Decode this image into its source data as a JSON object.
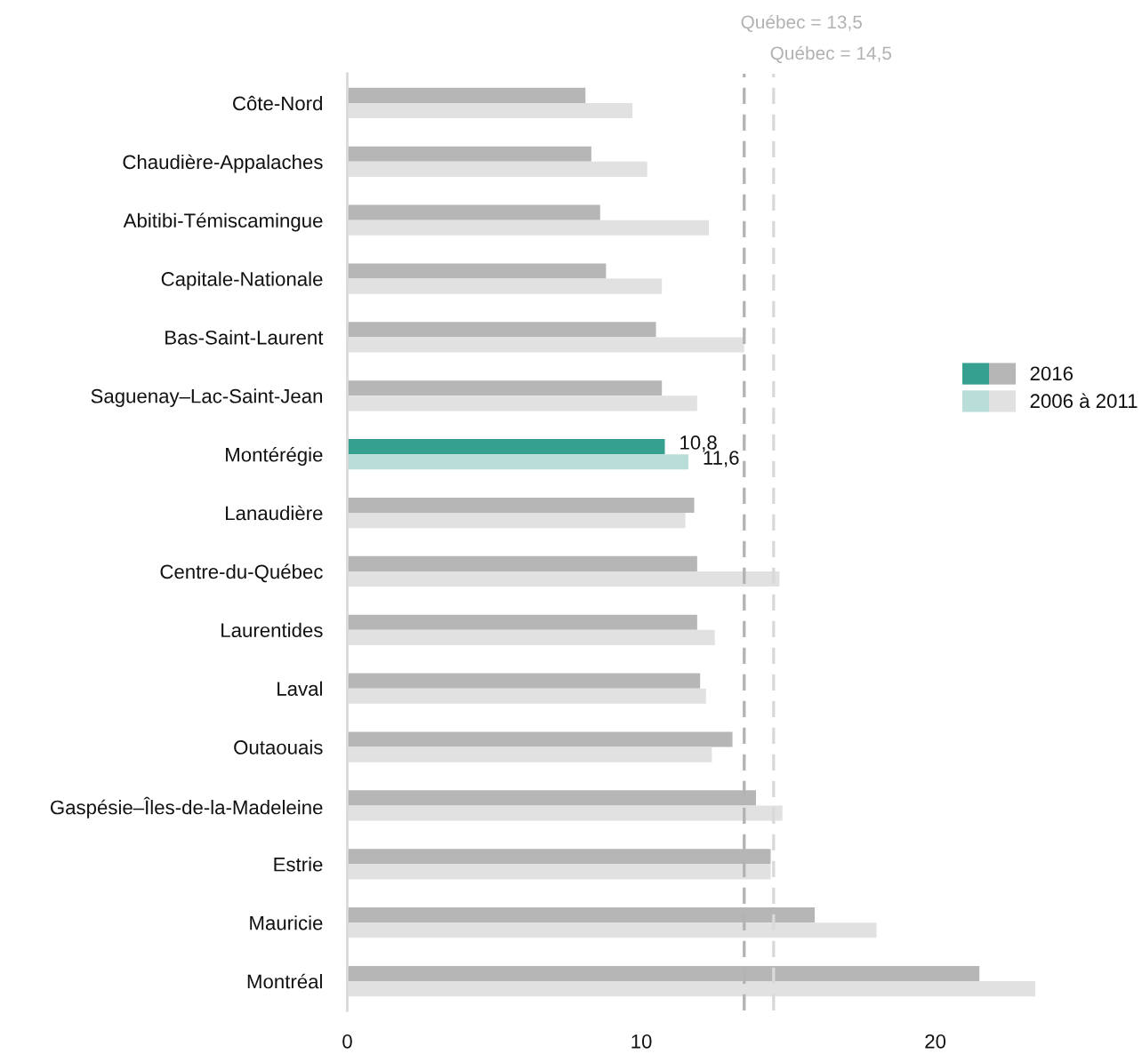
{
  "chart_data": {
    "type": "bar",
    "orientation": "horizontal",
    "categories": [
      "Côte-Nord",
      "Chaudière-Appalaches",
      "Abitibi-Témiscamingue",
      "Capitale-Nationale",
      "Bas-Saint-Laurent",
      "Saguenay–Lac-Saint-Jean",
      "Montérégie",
      "Lanaudière",
      "Centre-du-Québec",
      "Laurentides",
      "Laval",
      "Outaouais",
      "Gaspésie–Îles-de-la-Madeleine",
      "Estrie",
      "Mauricie",
      "Montréal"
    ],
    "series": [
      {
        "name": "2016",
        "color": "#b6b6b6",
        "colors": [
          "#b6b6b6",
          "#b6b6b6",
          "#b6b6b6",
          "#b6b6b6",
          "#b6b6b6",
          "#b6b6b6",
          "#36a090",
          "#b6b6b6",
          "#b6b6b6",
          "#b6b6b6",
          "#b6b6b6",
          "#b6b6b6",
          "#b6b6b6",
          "#b6b6b6",
          "#b6b6b6",
          "#b6b6b6"
        ],
        "values": [
          8.1,
          8.3,
          8.6,
          8.8,
          10.5,
          10.7,
          10.8,
          11.8,
          11.9,
          11.9,
          12.0,
          13.1,
          13.9,
          14.4,
          15.9,
          21.5
        ],
        "value_labels": [
          null,
          null,
          null,
          null,
          null,
          null,
          "10,8",
          null,
          null,
          null,
          null,
          null,
          null,
          null,
          null,
          null
        ]
      },
      {
        "name": "2006 à 2011",
        "color": "#e1e1e1",
        "colors": [
          "#e1e1e1",
          "#e1e1e1",
          "#e1e1e1",
          "#e1e1e1",
          "#e1e1e1",
          "#e1e1e1",
          "#b9deda",
          "#e1e1e1",
          "#e1e1e1",
          "#e1e1e1",
          "#e1e1e1",
          "#e1e1e1",
          "#e1e1e1",
          "#e1e1e1",
          "#e1e1e1",
          "#e1e1e1"
        ],
        "values": [
          9.7,
          10.2,
          12.3,
          10.7,
          13.5,
          11.9,
          11.6,
          11.5,
          14.7,
          12.5,
          12.2,
          12.4,
          14.8,
          14.4,
          18.0,
          23.4
        ],
        "value_labels": [
          null,
          null,
          null,
          null,
          null,
          null,
          "11,6",
          null,
          null,
          null,
          null,
          null,
          null,
          null,
          null,
          null
        ]
      }
    ],
    "xlim": [
      0,
      23.4
    ],
    "xticks": [
      0,
      10,
      20
    ],
    "ref_lines": [
      {
        "axis": "x",
        "value": 13.5,
        "label": "Québec = 13,5",
        "color": "#b3b3b3",
        "line_style": "dashed"
      },
      {
        "axis": "x",
        "value": 14.5,
        "label": "Québec = 14,5",
        "color": "#d9d9d9",
        "line_style": "dashed"
      }
    ],
    "legend": "right"
  }
}
